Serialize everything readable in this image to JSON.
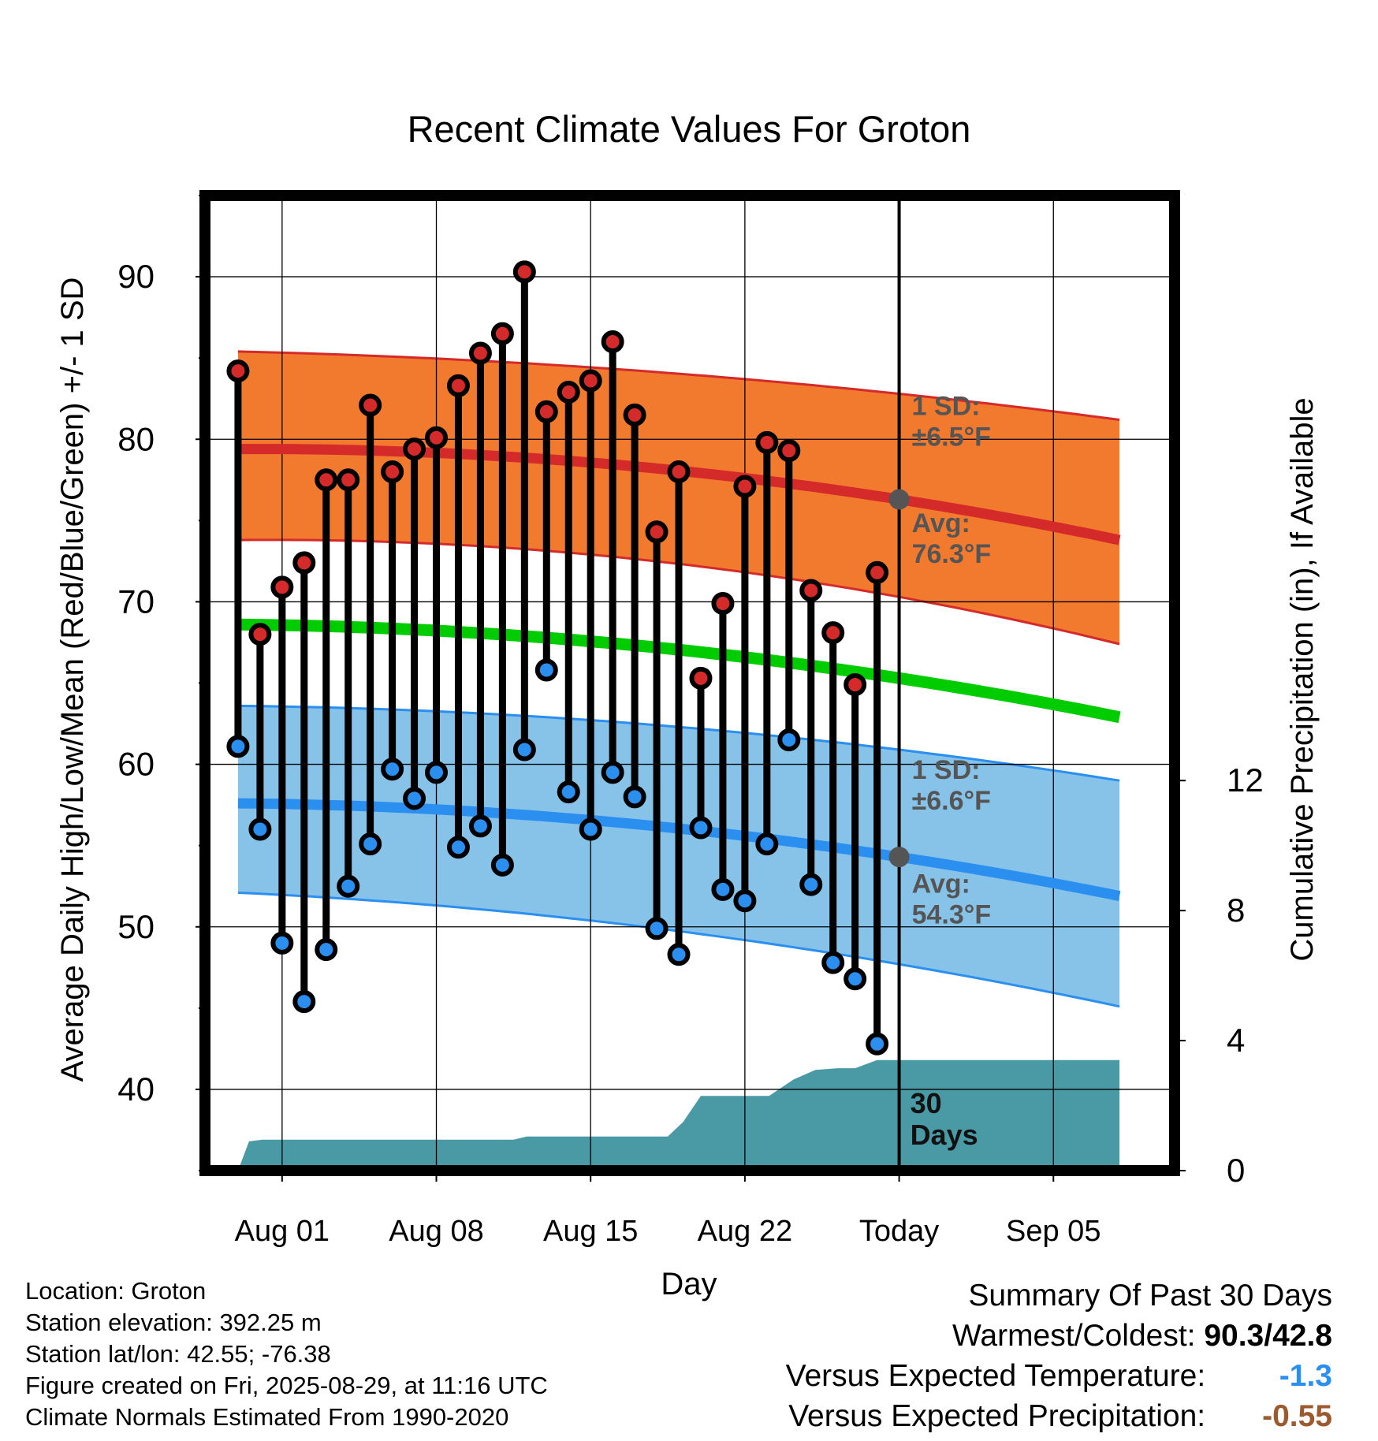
{
  "chart_data": {
    "type": "line",
    "title": "Recent Climate Values For Groton",
    "xlabel": "Day",
    "ylabel": "Average Daily High/Low/Mean (Red/Blue/Green) +/- 1 SD",
    "y2label": "Cumulative Precipitation (in), If Available",
    "x_range_day": [
      -3.5,
      40.5
    ],
    "ylim": [
      35,
      95
    ],
    "y2lim": [
      0,
      30
    ],
    "y_ticks": [
      40,
      50,
      60,
      70,
      80,
      90
    ],
    "y2_ticks": [
      0,
      4,
      8,
      12
    ],
    "x_ticks": [
      {
        "day": 0,
        "label": "Aug 01"
      },
      {
        "day": 7,
        "label": "Aug 08"
      },
      {
        "day": 14,
        "label": "Aug 15"
      },
      {
        "day": 21,
        "label": "Aug 22"
      },
      {
        "day": 28,
        "label": "Today"
      },
      {
        "day": 35,
        "label": "Sep 05"
      }
    ],
    "today_day": 28,
    "today_label": [
      "30",
      "Days"
    ],
    "grid": true,
    "colors": {
      "high": "#d42a2a",
      "low": "#2b8ff0",
      "mean": "#00cc00",
      "high_band": "#f27a2e",
      "low_band": "#87c3e8",
      "precip": "#4a9aa6"
    },
    "normals": {
      "days": [
        -2,
        28,
        38
      ],
      "high_avg": [
        79.4,
        76.3,
        73.8
      ],
      "high_upper": [
        85.4,
        82.8,
        81.2
      ],
      "high_lower": [
        73.8,
        70.3,
        67.4
      ],
      "low_avg": [
        57.6,
        54.3,
        51.9
      ],
      "low_upper": [
        63.6,
        60.9,
        59.0
      ],
      "low_lower": [
        52.1,
        47.7,
        45.1
      ],
      "mean_avg": [
        68.6,
        65.3,
        62.9
      ]
    },
    "annotations": {
      "high_sd": [
        "1 SD:",
        "±6.5°F"
      ],
      "high_avg": [
        "Avg:",
        "76.3°F"
      ],
      "low_sd": [
        "1 SD:",
        "±6.6°F"
      ],
      "low_avg": [
        "Avg:",
        "54.3°F"
      ]
    },
    "highs": [
      84.2,
      68.0,
      70.9,
      72.4,
      77.5,
      77.5,
      82.1,
      78.0,
      79.4,
      80.1,
      83.3,
      85.3,
      86.5,
      90.3,
      81.7,
      82.9,
      83.6,
      86.0,
      81.5,
      74.3,
      78.0,
      65.3,
      69.9,
      77.1,
      79.8,
      79.3,
      70.7,
      68.1,
      64.9,
      71.8
    ],
    "lows": [
      61.1,
      56.0,
      49.0,
      45.4,
      48.6,
      52.5,
      55.1,
      59.7,
      57.9,
      59.5,
      54.9,
      56.2,
      53.8,
      60.9,
      65.8,
      58.3,
      56.0,
      59.5,
      58.0,
      49.9,
      48.3,
      56.1,
      52.3,
      51.6,
      55.1,
      61.5,
      52.6,
      47.8,
      46.8,
      42.8
    ],
    "precip_cumulative": {
      "days": [
        -2,
        -1.5,
        -0.9,
        0,
        7,
        10.5,
        11.1,
        14,
        17.5,
        18.2,
        19,
        20,
        21,
        22.1,
        23.2,
        24.2,
        25.2,
        26,
        27,
        28,
        38
      ],
      "values": [
        0,
        0.9,
        0.95,
        0.95,
        0.95,
        0.95,
        1.05,
        1.05,
        1.05,
        1.5,
        2.3,
        2.3,
        2.3,
        2.3,
        2.8,
        3.1,
        3.15,
        3.15,
        3.4,
        3.4,
        3.4
      ]
    }
  },
  "footer": {
    "location": "Location: Groton",
    "elevation": "Station elevation: 392.25 m",
    "latlon": "Station lat/lon: 42.55; -76.38",
    "created": "Figure created on Fri, 2025-08-29, at 11:16 UTC",
    "normals": "Climate Normals Estimated From 1990-2020"
  },
  "summary": {
    "title": "Summary Of Past 30 Days",
    "warmest_label": "Warmest/Coldest:",
    "warmest_value": "90.3/42.8",
    "temp_label": "Versus Expected Temperature:",
    "temp_value": "-1.3",
    "temp_color": "#2b8ff0",
    "precip_label": "Versus Expected Precipitation:",
    "precip_value": "-0.55",
    "precip_color": "#9c5a2e"
  }
}
